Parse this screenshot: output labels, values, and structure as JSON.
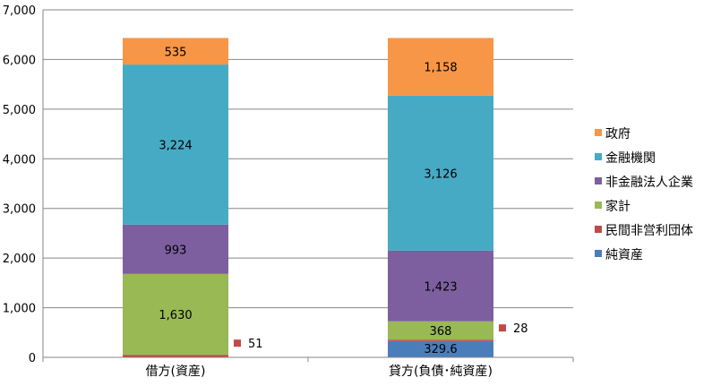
{
  "chart_data": {
    "type": "bar",
    "stacked": true,
    "title": "",
    "xlabel": "",
    "ylabel": "",
    "categories": [
      "借方(資産)",
      "貸方(負債･純資産)"
    ],
    "ylim": [
      0,
      7000
    ],
    "yticks": [
      0,
      1000,
      2000,
      3000,
      4000,
      5000,
      6000,
      7000
    ],
    "ytick_labels": [
      "0",
      "1,000",
      "2,000",
      "3,000",
      "4,000",
      "5,000",
      "6,000",
      "7,000"
    ],
    "grid": true,
    "legend_position": "right",
    "series": [
      {
        "name": "純資産",
        "color": "#4A7EBB",
        "values": [
          0,
          329.6
        ],
        "labels": [
          "",
          "329.6"
        ]
      },
      {
        "name": "民間非営利団体",
        "color": "#BE4B48",
        "values": [
          51,
          28
        ],
        "labels": [
          "51",
          "28"
        ]
      },
      {
        "name": "家計",
        "color": "#98B954",
        "values": [
          1630,
          368
        ],
        "labels": [
          "1,630",
          "368"
        ]
      },
      {
        "name": "非金融法人企業",
        "color": "#7D5FA0",
        "values": [
          993,
          1423
        ],
        "labels": [
          "993",
          "1,423"
        ]
      },
      {
        "name": "金融機関",
        "color": "#46AAC5",
        "values": [
          3224,
          3126
        ],
        "labels": [
          "3,224",
          "3,126"
        ]
      },
      {
        "name": "政府",
        "color": "#F79646",
        "values": [
          535,
          1158
        ],
        "labels": [
          "535",
          "1,158"
        ]
      }
    ],
    "legend_order": [
      "政府",
      "金融機関",
      "非金融法人企業",
      "家計",
      "民間非営利団体",
      "純資産"
    ]
  }
}
